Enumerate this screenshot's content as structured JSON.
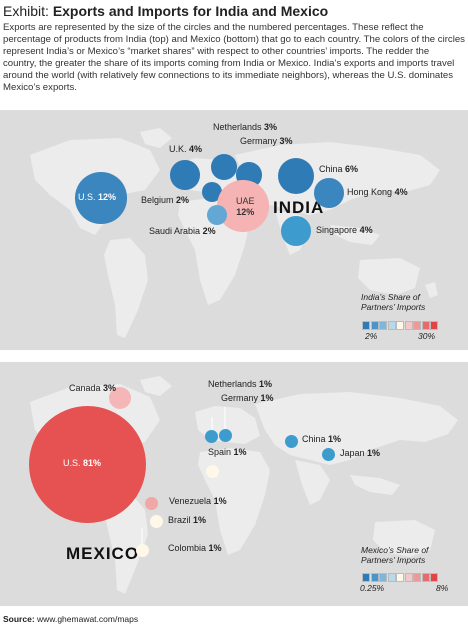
{
  "title": {
    "prefix": "Exhibit: ",
    "main": "Exports and Imports for India and Mexico"
  },
  "intro": "Exports are represented by the size of the circles and the numbered percentages. These reflect the percentage of products from India (top) and Mexico (bottom) that go to each country. The colors of the circles represent India’s or Mexico’s “market shares” with respect to other countries’ imports. The redder the country, the greater the share of its imports coming from India or Mexico. India’s exports and imports travel around the world (with relatively few connections to its immediate neighbors), whereas the U.S. dominates Mexico’s exports.",
  "colors": {
    "panel_bg": "#dcdcdc",
    "land": "#ececec",
    "scale": [
      "#2f7bb5",
      "#4d95c8",
      "#7fb6dc",
      "#b8d9ec",
      "#fff8e8",
      "#f4c8c8",
      "#ee9999",
      "#e96a6a",
      "#e24545"
    ]
  },
  "source": {
    "label": "Source:",
    "text": " www.ghemawat.com/maps"
  },
  "chart_data": [
    {
      "type": "bubble-map",
      "origin": "INDIA",
      "legend": {
        "title_line1": "India’s Share of",
        "title_line2": "Partners’ Imports",
        "min_label": "2%",
        "max_label": "30%"
      },
      "series": [
        {
          "name": "U.S.",
          "value_label": "12%",
          "value": 12,
          "color": "#3b86bf"
        },
        {
          "name": "U.K.",
          "value_label": "4%",
          "value": 4,
          "color": "#2f7bb5"
        },
        {
          "name": "Belgium",
          "value_label": "2%",
          "value": 2,
          "color": "#2f7bb5"
        },
        {
          "name": "Netherlands",
          "value_label": "3%",
          "value": 3,
          "color": "#2f7bb5"
        },
        {
          "name": "Germany",
          "value_label": "3%",
          "value": 3,
          "color": "#2f7bb5"
        },
        {
          "name": "UAE",
          "value_label": "12%",
          "value": 12,
          "color": "#f5b3b3"
        },
        {
          "name": "Saudi Arabia",
          "value_label": "2%",
          "value": 2,
          "color": "#63a7d4"
        },
        {
          "name": "China",
          "value_label": "6%",
          "value": 6,
          "color": "#2f7bb5"
        },
        {
          "name": "Hong Kong",
          "value_label": "4%",
          "value": 4,
          "color": "#3b86bf"
        },
        {
          "name": "Singapore",
          "value_label": "4%",
          "value": 4,
          "color": "#3d9ccd"
        }
      ]
    },
    {
      "type": "bubble-map",
      "origin": "MEXICO",
      "legend": {
        "title_line1": "Mexico’s Share of",
        "title_line2": "Partners’ Imports",
        "min_label": "0.25%",
        "max_label": "8%"
      },
      "series": [
        {
          "name": "U.S.",
          "value_label": "81%",
          "value": 81,
          "color": "#e65252"
        },
        {
          "name": "Canada",
          "value_label": "3%",
          "value": 3,
          "color": "#f4b6b6"
        },
        {
          "name": "Venezuela",
          "value_label": "1%",
          "value": 1,
          "color": "#f2a6a6"
        },
        {
          "name": "Brazil",
          "value_label": "1%",
          "value": 1,
          "color": "#fff8e8"
        },
        {
          "name": "Colombia",
          "value_label": "1%",
          "value": 1,
          "color": "#fff8e8"
        },
        {
          "name": "Netherlands",
          "value_label": "1%",
          "value": 1,
          "color": "#3d9ccd"
        },
        {
          "name": "Germany",
          "value_label": "1%",
          "value": 1,
          "color": "#3d9ccd"
        },
        {
          "name": "Spain",
          "value_label": "1%",
          "value": 1,
          "color": "#fff8e8"
        },
        {
          "name": "China",
          "value_label": "1%",
          "value": 1,
          "color": "#3d9ccd"
        },
        {
          "name": "Japan",
          "value_label": "1%",
          "value": 1,
          "color": "#3d9ccd"
        }
      ]
    }
  ]
}
